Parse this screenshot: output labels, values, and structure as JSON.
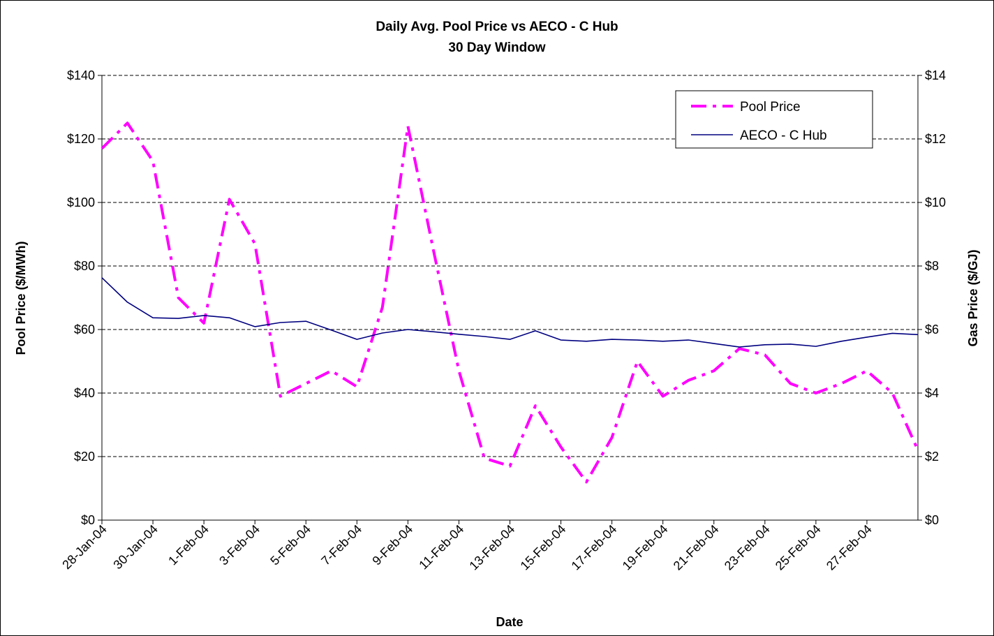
{
  "chart_data": {
    "type": "line",
    "title": "Daily Avg. Pool Price vs AECO - C Hub",
    "subtitle": "30 Day Window",
    "x_label": "Date",
    "y_label": "Pool Price ($/MWh)",
    "y2_label": "Gas Price ($/GJ)",
    "categories": [
      "28-Jan-04",
      null,
      "30-Jan-04",
      null,
      "1-Feb-04",
      null,
      "3-Feb-04",
      null,
      "5-Feb-04",
      null,
      "7-Feb-04",
      null,
      "9-Feb-04",
      null,
      "11-Feb-04",
      null,
      "13-Feb-04",
      null,
      "15-Feb-04",
      null,
      "17-Feb-04",
      null,
      "19-Feb-04",
      null,
      "21-Feb-04",
      null,
      "23-Feb-04",
      null,
      "25-Feb-04",
      null,
      "27-Feb-04",
      null,
      null
    ],
    "series": [
      {
        "name": "Pool Price",
        "color": "#ff00ff",
        "dashed": true,
        "values": [
          117,
          125,
          113,
          70,
          62,
          101,
          87,
          39,
          43,
          47,
          42,
          67,
          124,
          85,
          47,
          19.5,
          17,
          36,
          23,
          12,
          26,
          50,
          39,
          44,
          47,
          54,
          52,
          43,
          40,
          43,
          47,
          40,
          22
        ]
      },
      {
        "name": "AECO - C Hub",
        "color": "#000080",
        "axis": "y2",
        "values": [
          7.63,
          6.86,
          6.37,
          6.35,
          6.44,
          6.37,
          6.09,
          6.22,
          6.26,
          5.98,
          5.69,
          5.89,
          6.0,
          5.93,
          5.85,
          5.78,
          5.69,
          5.96,
          5.67,
          5.63,
          5.69,
          5.67,
          5.63,
          5.67,
          5.56,
          5.45,
          5.52,
          5.54,
          5.47,
          5.63,
          5.76,
          5.88,
          5.84
        ]
      }
    ],
    "ylim": [
      0,
      140
    ],
    "yticks": [
      {
        "value": 0,
        "label": "$0"
      },
      {
        "value": 20,
        "label": "$20"
      },
      {
        "value": 40,
        "label": "$40"
      },
      {
        "value": 60,
        "label": "$60"
      },
      {
        "value": 80,
        "label": "$80"
      },
      {
        "value": 100,
        "label": "$100"
      },
      {
        "value": 120,
        "label": "$120"
      },
      {
        "value": 140,
        "label": "$140"
      }
    ],
    "y2lim": [
      0,
      14
    ],
    "y2ticks": [
      {
        "value": 0,
        "label": "$0"
      },
      {
        "value": 2,
        "label": "$2"
      },
      {
        "value": 4,
        "label": "$4"
      },
      {
        "value": 6,
        "label": "$6"
      },
      {
        "value": 8,
        "label": "$8"
      },
      {
        "value": 10,
        "label": "$10"
      },
      {
        "value": 12,
        "label": "$12"
      },
      {
        "value": 14,
        "label": "$14"
      }
    ],
    "grid": true,
    "legend": "top-right"
  }
}
